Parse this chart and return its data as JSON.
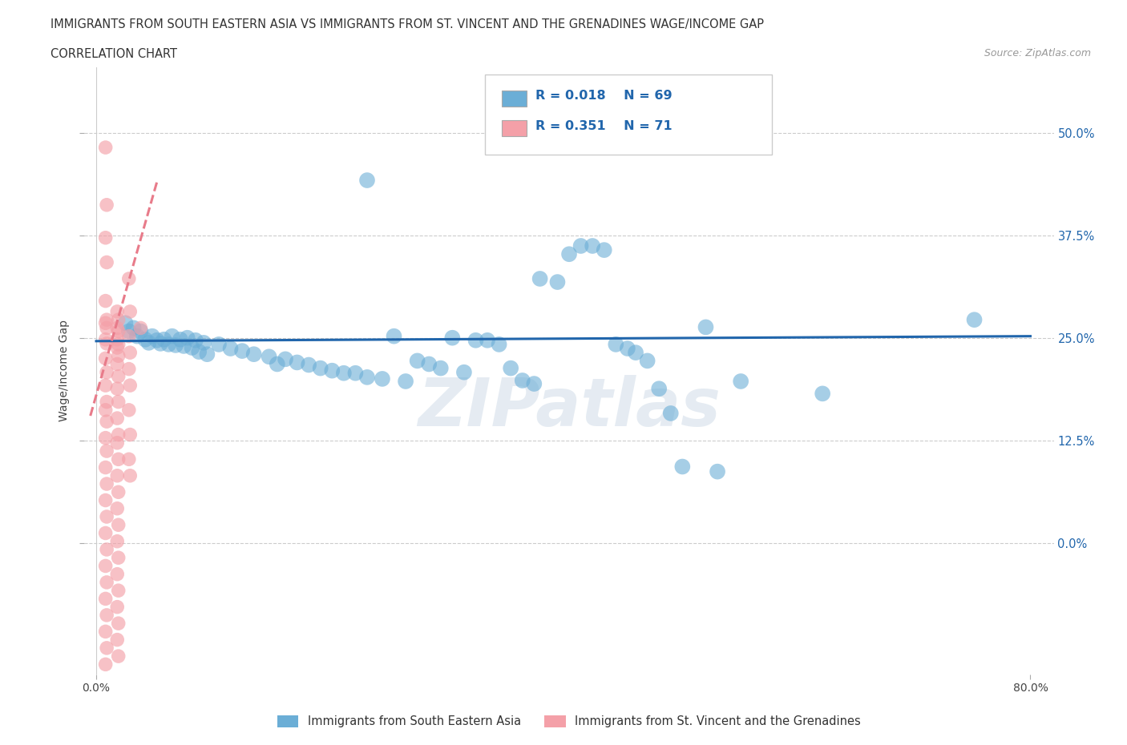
{
  "title_line1": "IMMIGRANTS FROM SOUTH EASTERN ASIA VS IMMIGRANTS FROM ST. VINCENT AND THE GRENADINES WAGE/INCOME GAP",
  "title_line2": "CORRELATION CHART",
  "source_text": "Source: ZipAtlas.com",
  "ylabel": "Wage/Income Gap",
  "xlim": [
    -0.01,
    0.82
  ],
  "ylim": [
    -0.16,
    0.58
  ],
  "yticks": [
    0.0,
    0.125,
    0.25,
    0.375,
    0.5
  ],
  "ytick_labels": [
    "0.0%",
    "12.5%",
    "25.0%",
    "37.5%",
    "50.0%"
  ],
  "xticks": [
    0.0,
    0.8
  ],
  "xtick_labels": [
    "0.0%",
    "80.0%"
  ],
  "watermark": "ZIPatlas",
  "blue_color": "#6baed6",
  "pink_color": "#f4a0a8",
  "blue_line_color": "#2166ac",
  "pink_line_color": "#e87b8a",
  "blue_scatter": [
    [
      0.025,
      0.268
    ],
    [
      0.028,
      0.258
    ],
    [
      0.032,
      0.262
    ],
    [
      0.035,
      0.252
    ],
    [
      0.038,
      0.258
    ],
    [
      0.042,
      0.248
    ],
    [
      0.045,
      0.244
    ],
    [
      0.048,
      0.252
    ],
    [
      0.052,
      0.247
    ],
    [
      0.055,
      0.243
    ],
    [
      0.058,
      0.248
    ],
    [
      0.062,
      0.242
    ],
    [
      0.065,
      0.252
    ],
    [
      0.068,
      0.241
    ],
    [
      0.072,
      0.248
    ],
    [
      0.075,
      0.24
    ],
    [
      0.078,
      0.25
    ],
    [
      0.082,
      0.238
    ],
    [
      0.085,
      0.247
    ],
    [
      0.088,
      0.233
    ],
    [
      0.092,
      0.244
    ],
    [
      0.095,
      0.23
    ],
    [
      0.105,
      0.242
    ],
    [
      0.115,
      0.237
    ],
    [
      0.125,
      0.234
    ],
    [
      0.135,
      0.23
    ],
    [
      0.148,
      0.227
    ],
    [
      0.155,
      0.218
    ],
    [
      0.162,
      0.224
    ],
    [
      0.172,
      0.22
    ],
    [
      0.182,
      0.217
    ],
    [
      0.192,
      0.213
    ],
    [
      0.202,
      0.21
    ],
    [
      0.212,
      0.207
    ],
    [
      0.222,
      0.207
    ],
    [
      0.232,
      0.202
    ],
    [
      0.245,
      0.2
    ],
    [
      0.255,
      0.252
    ],
    [
      0.265,
      0.197
    ],
    [
      0.275,
      0.222
    ],
    [
      0.285,
      0.218
    ],
    [
      0.295,
      0.213
    ],
    [
      0.305,
      0.25
    ],
    [
      0.315,
      0.208
    ],
    [
      0.325,
      0.247
    ],
    [
      0.335,
      0.247
    ],
    [
      0.345,
      0.242
    ],
    [
      0.355,
      0.213
    ],
    [
      0.365,
      0.198
    ],
    [
      0.375,
      0.194
    ],
    [
      0.38,
      0.322
    ],
    [
      0.395,
      0.318
    ],
    [
      0.405,
      0.352
    ],
    [
      0.415,
      0.362
    ],
    [
      0.425,
      0.362
    ],
    [
      0.435,
      0.357
    ],
    [
      0.445,
      0.242
    ],
    [
      0.455,
      0.237
    ],
    [
      0.462,
      0.232
    ],
    [
      0.472,
      0.222
    ],
    [
      0.482,
      0.188
    ],
    [
      0.492,
      0.158
    ],
    [
      0.502,
      0.093
    ],
    [
      0.522,
      0.263
    ],
    [
      0.532,
      0.087
    ],
    [
      0.552,
      0.197
    ],
    [
      0.622,
      0.182
    ],
    [
      0.752,
      0.272
    ],
    [
      0.232,
      0.442
    ]
  ],
  "pink_scatter": [
    [
      0.008,
      0.482
    ],
    [
      0.009,
      0.412
    ],
    [
      0.008,
      0.372
    ],
    [
      0.009,
      0.342
    ],
    [
      0.008,
      0.295
    ],
    [
      0.009,
      0.272
    ],
    [
      0.008,
      0.268
    ],
    [
      0.009,
      0.262
    ],
    [
      0.008,
      0.248
    ],
    [
      0.009,
      0.243
    ],
    [
      0.008,
      0.225
    ],
    [
      0.009,
      0.208
    ],
    [
      0.008,
      0.192
    ],
    [
      0.009,
      0.172
    ],
    [
      0.008,
      0.162
    ],
    [
      0.009,
      0.148
    ],
    [
      0.008,
      0.128
    ],
    [
      0.009,
      0.112
    ],
    [
      0.008,
      0.092
    ],
    [
      0.009,
      0.072
    ],
    [
      0.008,
      0.052
    ],
    [
      0.009,
      0.032
    ],
    [
      0.008,
      0.012
    ],
    [
      0.009,
      -0.008
    ],
    [
      0.008,
      -0.028
    ],
    [
      0.009,
      -0.048
    ],
    [
      0.008,
      -0.068
    ],
    [
      0.009,
      -0.088
    ],
    [
      0.008,
      -0.108
    ],
    [
      0.009,
      -0.128
    ],
    [
      0.008,
      -0.148
    ],
    [
      0.018,
      0.282
    ],
    [
      0.019,
      0.272
    ],
    [
      0.018,
      0.262
    ],
    [
      0.019,
      0.258
    ],
    [
      0.018,
      0.248
    ],
    [
      0.019,
      0.242
    ],
    [
      0.018,
      0.238
    ],
    [
      0.019,
      0.228
    ],
    [
      0.018,
      0.218
    ],
    [
      0.019,
      0.203
    ],
    [
      0.018,
      0.188
    ],
    [
      0.019,
      0.172
    ],
    [
      0.018,
      0.152
    ],
    [
      0.019,
      0.132
    ],
    [
      0.018,
      0.122
    ],
    [
      0.019,
      0.102
    ],
    [
      0.018,
      0.082
    ],
    [
      0.019,
      0.062
    ],
    [
      0.018,
      0.042
    ],
    [
      0.019,
      0.022
    ],
    [
      0.018,
      0.002
    ],
    [
      0.019,
      -0.018
    ],
    [
      0.018,
      -0.038
    ],
    [
      0.019,
      -0.058
    ],
    [
      0.018,
      -0.078
    ],
    [
      0.019,
      -0.098
    ],
    [
      0.018,
      -0.118
    ],
    [
      0.019,
      -0.138
    ],
    [
      0.028,
      0.322
    ],
    [
      0.029,
      0.282
    ],
    [
      0.028,
      0.252
    ],
    [
      0.029,
      0.232
    ],
    [
      0.028,
      0.212
    ],
    [
      0.029,
      0.192
    ],
    [
      0.028,
      0.162
    ],
    [
      0.029,
      0.132
    ],
    [
      0.028,
      0.102
    ],
    [
      0.029,
      0.082
    ],
    [
      0.038,
      0.262
    ]
  ],
  "blue_trend_x": [
    0.0,
    0.8
  ],
  "blue_trend_y": [
    0.246,
    0.252
  ],
  "pink_trend_x": [
    -0.005,
    0.052
  ],
  "pink_trend_y": [
    0.155,
    0.44
  ],
  "hgrid_values": [
    0.0,
    0.125,
    0.25,
    0.375,
    0.5
  ]
}
